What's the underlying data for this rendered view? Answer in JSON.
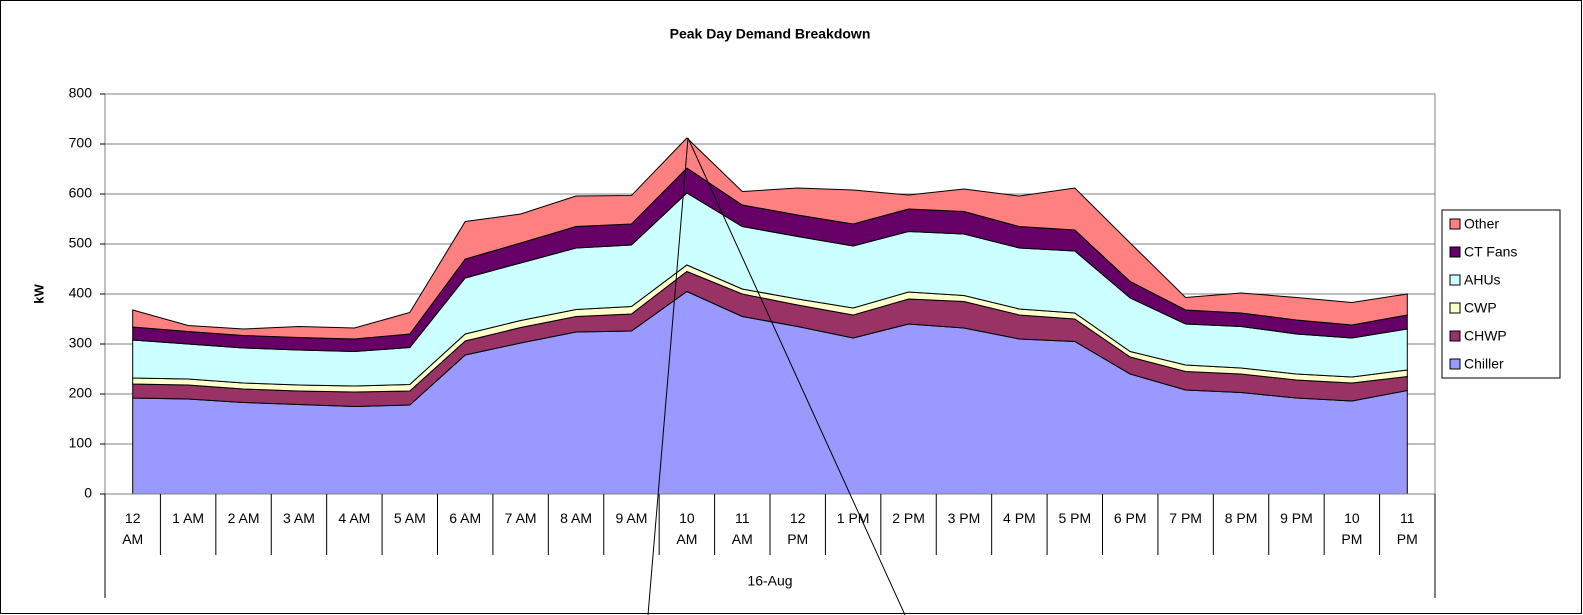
{
  "chart_data": {
    "type": "stacked_area",
    "title": "Peak Day Demand Breakdown",
    "y_label": "kW",
    "x_group_label": "16-Aug",
    "categories": [
      "12 AM",
      "1 AM",
      "2 AM",
      "3 AM",
      "4 AM",
      "5 AM",
      "6 AM",
      "7 AM",
      "8 AM",
      "9 AM",
      "10 AM",
      "11 AM",
      "12 PM",
      "1 PM",
      "2 PM",
      "3 PM",
      "4 PM",
      "5 PM",
      "6 PM",
      "7 PM",
      "8 PM",
      "9 PM",
      "10 PM",
      "11 PM"
    ],
    "series": [
      {
        "name": "Chiller",
        "color": "#9999ff",
        "values": [
          192,
          190,
          183,
          179,
          175,
          178,
          278,
          302,
          324,
          326,
          405,
          355,
          335,
          312,
          340,
          332,
          310,
          305,
          240,
          208,
          203,
          192,
          186,
          207
        ]
      },
      {
        "name": "CHWP",
        "color": "#993366",
        "values": [
          28,
          28,
          27,
          27,
          29,
          28,
          28,
          31,
          31,
          34,
          40,
          45,
          43,
          46,
          50,
          53,
          48,
          45,
          34,
          37,
          37,
          36,
          36,
          28
        ]
      },
      {
        "name": "CWP",
        "color": "#ffffcc",
        "values": [
          12,
          12,
          12,
          12,
          12,
          13,
          14,
          14,
          14,
          15,
          13,
          10,
          12,
          14,
          14,
          12,
          12,
          12,
          11,
          13,
          12,
          12,
          12,
          13
        ]
      },
      {
        "name": "AHUs",
        "color": "#ccffff",
        "values": [
          76,
          70,
          70,
          70,
          69,
          74,
          112,
          115,
          123,
          123,
          144,
          125,
          125,
          124,
          121,
          123,
          122,
          124,
          107,
          82,
          83,
          80,
          78,
          82
        ]
      },
      {
        "name": "CT Fans",
        "color": "#660066",
        "values": [
          26,
          25,
          25,
          25,
          25,
          27,
          38,
          40,
          43,
          42,
          50,
          43,
          43,
          44,
          45,
          45,
          43,
          42,
          33,
          28,
          27,
          28,
          26,
          28
        ]
      },
      {
        "name": "Other",
        "color": "#ff8080",
        "values": [
          34,
          12,
          13,
          22,
          22,
          43,
          75,
          58,
          61,
          57,
          60,
          27,
          54,
          68,
          28,
          45,
          61,
          84,
          77,
          25,
          40,
          45,
          45,
          42
        ]
      }
    ],
    "ylim": [
      0,
      800
    ],
    "yticks": [
      0,
      100,
      200,
      300,
      400,
      500,
      600,
      700,
      800
    ],
    "grid": true
  }
}
